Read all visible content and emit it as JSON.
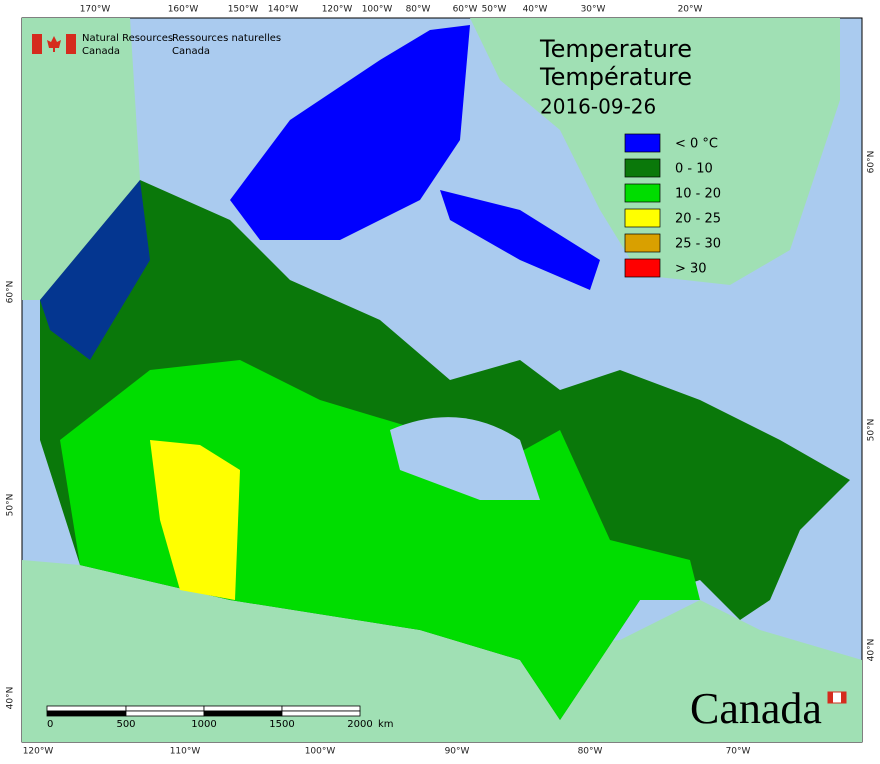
{
  "logo": {
    "en_line1": "Natural Resources",
    "en_line2": "Canada",
    "fr_line1": "Ressources naturelles",
    "fr_line2": "Canada"
  },
  "title": {
    "line1": "Temperature",
    "line2": "Température",
    "date": "2016-09-26"
  },
  "legend": [
    {
      "label": "< 0 °C",
      "color": "#0000ff"
    },
    {
      "label": "0 - 10",
      "color": "#0a780a"
    },
    {
      "label": "10 - 20",
      "color": "#00dd00"
    },
    {
      "label": "20 - 25",
      "color": "#ffff00"
    },
    {
      "label": "25 - 30",
      "color": "#d9a000"
    },
    {
      "label": "> 30",
      "color": "#ff0000"
    }
  ],
  "graticule": {
    "top": [
      "170°W",
      "160°W",
      "150°W",
      "140°W",
      "120°W",
      "100°W",
      "80°W",
      "60°W",
      "50°W",
      "40°W",
      "30°W",
      "20°W"
    ],
    "bottom": [
      "120°W",
      "110°W",
      "100°W",
      "90°W",
      "80°W",
      "70°W"
    ],
    "left": [
      "60°N",
      "50°N",
      "40°N"
    ],
    "right": [
      "60°N",
      "50°N",
      "40°N"
    ]
  },
  "scale_bar": {
    "labels": [
      "0",
      "500",
      "1000",
      "1500",
      "2000"
    ],
    "unit": "km"
  },
  "wordmark": "Canada"
}
